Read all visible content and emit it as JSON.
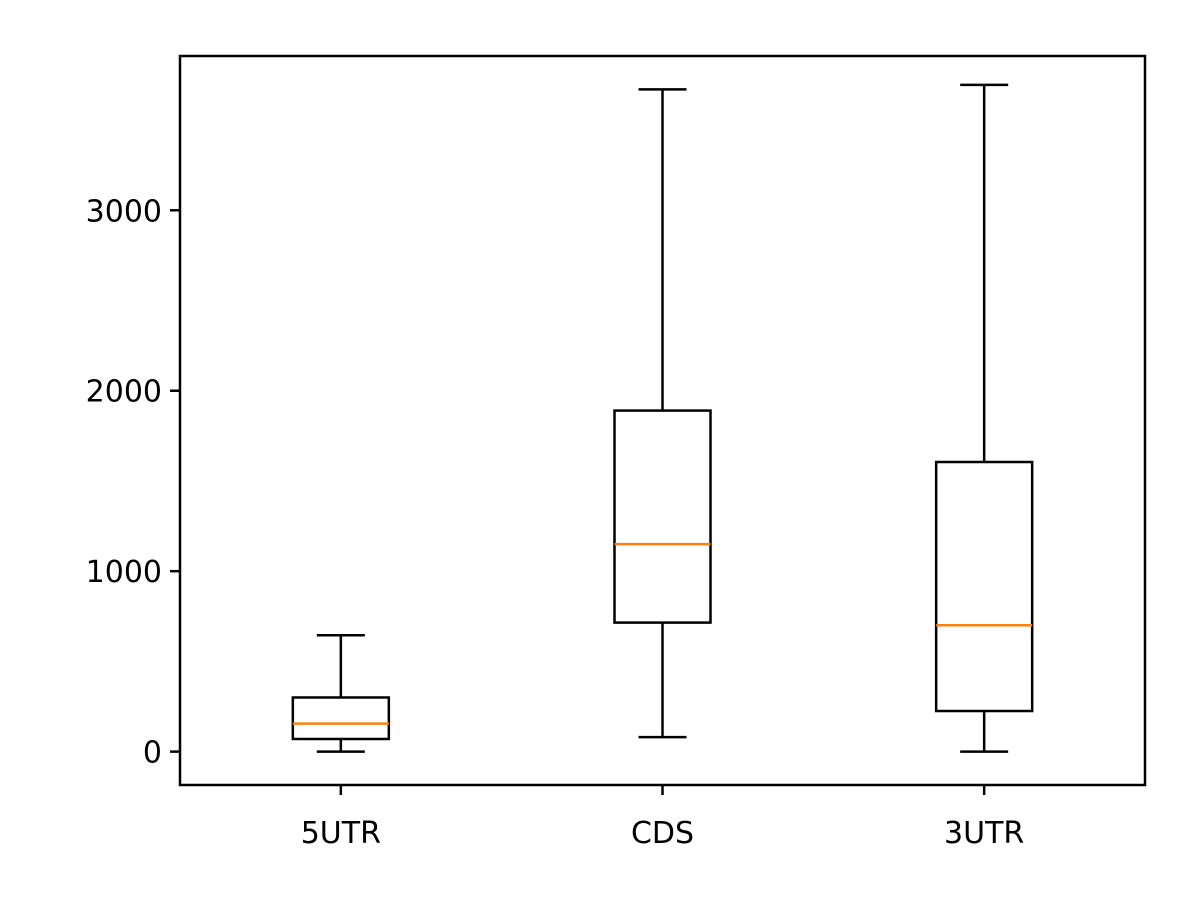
{
  "chart_data": {
    "type": "boxplot",
    "title": "",
    "xlabel": "",
    "ylabel": "",
    "categories": [
      "5UTR",
      "CDS",
      "3UTR"
    ],
    "boxes": [
      {
        "label": "5UTR",
        "whisker_low": 0,
        "q1": 70,
        "median": 155,
        "q3": 300,
        "whisker_high": 645
      },
      {
        "label": "CDS",
        "whisker_low": 80,
        "q1": 715,
        "median": 1150,
        "q3": 1890,
        "whisker_high": 3670
      },
      {
        "label": "3UTR",
        "whisker_low": 0,
        "q1": 225,
        "median": 700,
        "q3": 1605,
        "whisker_high": 3695
      }
    ],
    "y_ticks": [
      0,
      1000,
      2000,
      3000
    ],
    "y_tick_labels": [
      "0",
      "1000",
      "2000",
      "3000"
    ],
    "ylim": [
      -185,
      3855
    ],
    "grid": false,
    "colors": {
      "box": "#000000",
      "median": "#ff7f0e",
      "whisker": "#000000",
      "frame": "#000000"
    }
  }
}
